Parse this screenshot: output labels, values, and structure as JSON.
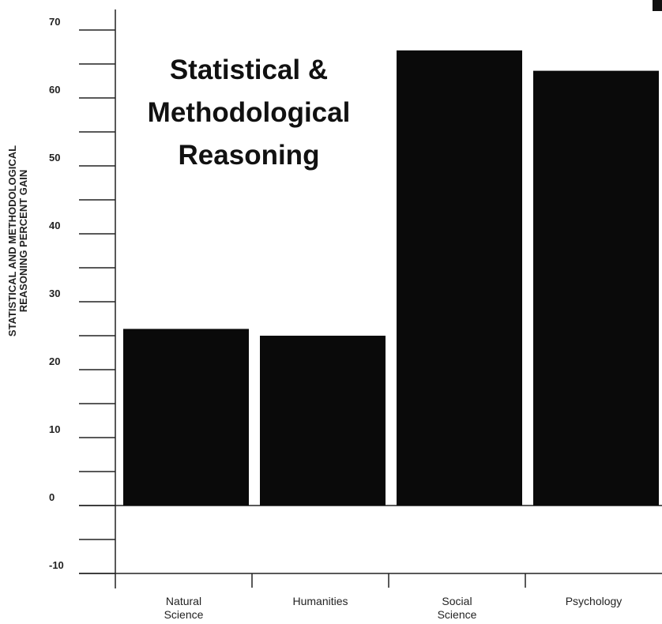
{
  "chart_data": {
    "type": "bar",
    "title_lines": [
      "Statistical &",
      "Methodological",
      "Reasoning"
    ],
    "ylabel_lines": [
      "STATISTICAL AND METHODOLOGICAL",
      "REASONING PERCENT GAIN"
    ],
    "xlabel": "",
    "categories": [
      [
        "Natural",
        "Science"
      ],
      [
        "Humanities"
      ],
      [
        "Social",
        "Science"
      ],
      [
        "Psychology"
      ]
    ],
    "values": [
      26,
      25,
      67,
      64
    ],
    "ylim": [
      -10,
      70
    ],
    "yticks": [
      70,
      60,
      50,
      40,
      30,
      20,
      10,
      0,
      -10
    ],
    "bar_color": "#0a0a0a",
    "grid": false,
    "legend": "none"
  }
}
